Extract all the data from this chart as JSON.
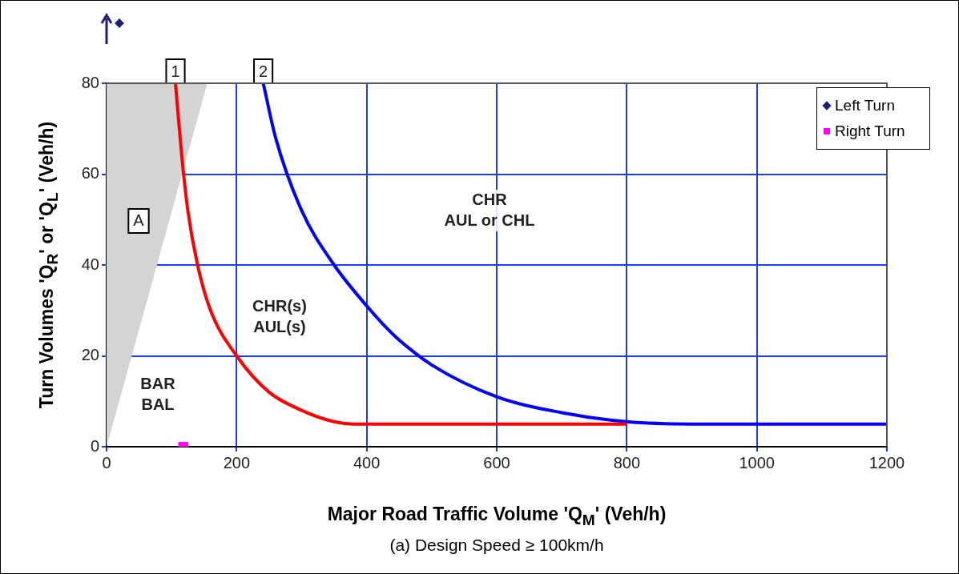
{
  "chart_data": {
    "type": "line",
    "xlabel": "Major Road Traffic Volume 'Q$_{M}$' (Veh/h)",
    "ylabel": "Turn Volumes 'Q$_{R}$' or 'Q$_{L}$' (Veh/h)",
    "xlim": [
      0,
      1200
    ],
    "ylim": [
      0,
      80
    ],
    "xticks": [
      0,
      200,
      400,
      600,
      800,
      1000,
      1200
    ],
    "yticks": [
      0,
      20,
      40,
      60,
      80
    ],
    "grid": true,
    "legend": "top right",
    "series": [
      {
        "type": "area",
        "color": "#d4d4d4",
        "x": [
          0,
          155
        ],
        "values": [
          0,
          80
        ]
      },
      {
        "color": "#ff0000",
        "marker": "none",
        "x": [
          106,
          115,
          125,
          140,
          160,
          200,
          250,
          300,
          350,
          380,
          800
        ],
        "values": [
          80,
          65,
          52,
          40,
          30,
          20,
          12,
          8,
          5.5,
          5,
          5
        ]
      },
      {
        "color": "#0000ff",
        "marker": "none",
        "x": [
          241,
          260,
          300,
          350,
          400,
          425,
          450,
          500,
          600,
          700,
          800,
          900,
          1200
        ],
        "values": [
          80,
          68,
          52,
          40,
          31,
          27,
          23.5,
          18,
          11,
          7.5,
          5.5,
          5,
          5
        ]
      },
      {
        "type": "scatter",
        "name": "Left Turn",
        "color": "#1f1f7a",
        "marker": "diamond"
      },
      {
        "type": "scatter",
        "name": "Right Turn",
        "color": "#ff00ff",
        "marker": "square",
        "x": [
          118
        ],
        "values": [
          0
        ]
      }
    ],
    "annotations": [
      {
        "text": "1",
        "x": 106,
        "y": 80
      },
      {
        "text": "2",
        "x": 241,
        "y": 80
      },
      "A",
      "BAR\nBAL",
      "CHR(s)\nAUL(s)",
      "CHR\nAUL or CHL",
      "(a) Design Speed ≥ 100km/h"
    ]
  }
}
